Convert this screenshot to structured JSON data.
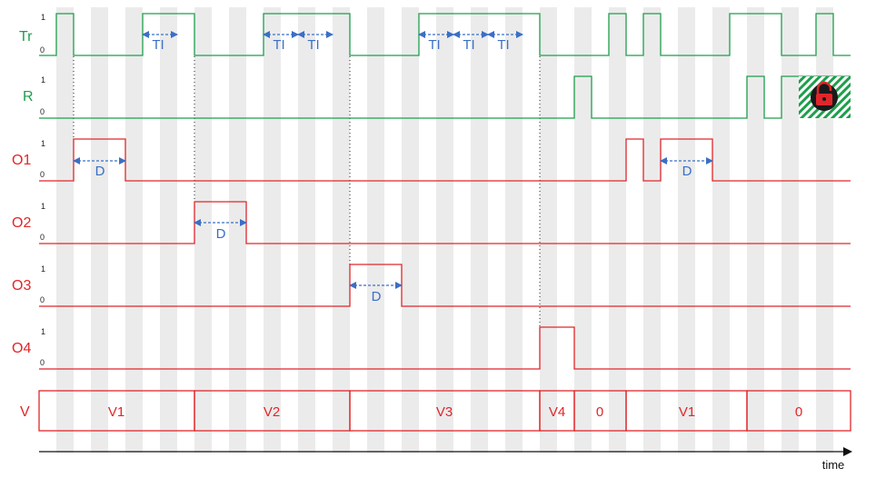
{
  "signals": {
    "tr": {
      "label": "Tr",
      "high": "1",
      "low": "0"
    },
    "r": {
      "label": "R",
      "high": "1",
      "low": "0"
    },
    "o1": {
      "label": "O1",
      "high": "1",
      "low": "0"
    },
    "o2": {
      "label": "O2",
      "high": "1",
      "low": "0"
    },
    "o3": {
      "label": "O3",
      "high": "1",
      "low": "0"
    },
    "o4": {
      "label": "O4",
      "high": "1",
      "low": "0"
    },
    "v": {
      "label": "V"
    }
  },
  "interval_labels": {
    "ti": "TI",
    "d": "D"
  },
  "value_segments": [
    "V1",
    "V2",
    "V3",
    "V4",
    "0",
    "V1",
    "0"
  ],
  "axis": {
    "label": "time"
  },
  "colors": {
    "green": "#1e9e4c",
    "red": "#e0262a",
    "blue": "#3a6fc6",
    "stripe": "#ebebeb",
    "lock": "#e0262a"
  },
  "icons": {
    "lock": "unlocked-padlock-icon"
  }
}
